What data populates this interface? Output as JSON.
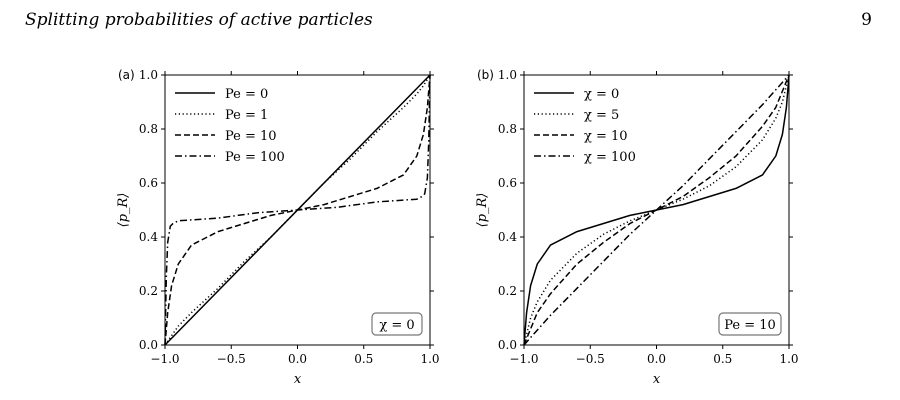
{
  "header": {
    "running_title": "Splitting probabilities of active particles",
    "page_number": "9"
  },
  "chart_data": [
    {
      "type": "line",
      "panel_label": "(a)",
      "xlabel": "x",
      "ylabel": "⟨p_R⟩",
      "xlim": [
        -1,
        1
      ],
      "ylim": [
        0,
        1
      ],
      "xticks": [
        "−1.0",
        "−0.5",
        "0.0",
        "0.5",
        "1.0"
      ],
      "yticks": [
        "0.0",
        "0.2",
        "0.4",
        "0.6",
        "0.8",
        "1.0"
      ],
      "legend_position": "top-left",
      "annotation": "χ = 0",
      "series": [
        {
          "name": "Pe = 0",
          "style": "solid",
          "x": [
            -1,
            1
          ],
          "y": [
            0,
            1
          ]
        },
        {
          "name": "Pe = 1",
          "style": "dotted",
          "x": [
            -1,
            -0.9,
            -0.8,
            -0.6,
            -0.4,
            -0.2,
            0,
            0.2,
            0.4,
            0.6,
            0.8,
            0.9,
            0.95,
            1
          ],
          "y": [
            0,
            0.07,
            0.12,
            0.21,
            0.31,
            0.4,
            0.5,
            0.6,
            0.69,
            0.79,
            0.88,
            0.93,
            0.96,
            1
          ]
        },
        {
          "name": "Pe = 10",
          "style": "dashed",
          "x": [
            -1,
            -0.98,
            -0.95,
            -0.9,
            -0.8,
            -0.6,
            -0.4,
            -0.2,
            0,
            0.2,
            0.4,
            0.6,
            0.8,
            0.9,
            0.95,
            0.98,
            1
          ],
          "y": [
            0,
            0.12,
            0.22,
            0.3,
            0.37,
            0.42,
            0.45,
            0.48,
            0.5,
            0.52,
            0.55,
            0.58,
            0.63,
            0.7,
            0.78,
            0.88,
            1
          ]
        },
        {
          "name": "Pe = 100",
          "style": "dashdot",
          "x": [
            -1,
            -0.99,
            -0.98,
            -0.96,
            -0.94,
            -0.9,
            -0.6,
            -0.3,
            0,
            0.3,
            0.6,
            0.9,
            0.94,
            0.96,
            0.98,
            0.99,
            1
          ],
          "y": [
            0,
            0.25,
            0.38,
            0.44,
            0.45,
            0.46,
            0.47,
            0.49,
            0.5,
            0.51,
            0.53,
            0.54,
            0.55,
            0.56,
            0.62,
            0.75,
            1
          ]
        }
      ]
    },
    {
      "type": "line",
      "panel_label": "(b)",
      "xlabel": "x",
      "ylabel": "⟨p_R⟩",
      "xlim": [
        -1,
        1
      ],
      "ylim": [
        0,
        1
      ],
      "xticks": [
        "−1.0",
        "−0.5",
        "0.0",
        "0.5",
        "1.0"
      ],
      "yticks": [
        "0.0",
        "0.2",
        "0.4",
        "0.6",
        "0.8",
        "1.0"
      ],
      "legend_position": "top-left",
      "annotation": "Pe = 10",
      "series": [
        {
          "name": "χ = 0",
          "style": "solid",
          "x": [
            -1,
            -0.98,
            -0.95,
            -0.9,
            -0.8,
            -0.6,
            -0.4,
            -0.2,
            0,
            0.2,
            0.4,
            0.6,
            0.8,
            0.9,
            0.95,
            0.98,
            1
          ],
          "y": [
            0,
            0.12,
            0.22,
            0.3,
            0.37,
            0.42,
            0.45,
            0.48,
            0.5,
            0.52,
            0.55,
            0.58,
            0.63,
            0.7,
            0.78,
            0.88,
            1
          ]
        },
        {
          "name": "χ = 5",
          "style": "dotted",
          "x": [
            -1,
            -0.95,
            -0.9,
            -0.8,
            -0.6,
            -0.4,
            -0.2,
            0,
            0.2,
            0.4,
            0.6,
            0.8,
            0.9,
            0.95,
            1
          ],
          "y": [
            0,
            0.1,
            0.16,
            0.24,
            0.34,
            0.41,
            0.46,
            0.5,
            0.54,
            0.59,
            0.66,
            0.76,
            0.84,
            0.9,
            1
          ]
        },
        {
          "name": "χ = 10",
          "style": "dashed",
          "x": [
            -1,
            -0.9,
            -0.8,
            -0.6,
            -0.4,
            -0.2,
            0,
            0.2,
            0.4,
            0.6,
            0.8,
            0.9,
            1
          ],
          "y": [
            0,
            0.12,
            0.19,
            0.3,
            0.38,
            0.45,
            0.5,
            0.55,
            0.62,
            0.7,
            0.81,
            0.88,
            1
          ]
        },
        {
          "name": "χ = 100",
          "style": "dashdot",
          "x": [
            -1,
            -0.8,
            -0.6,
            -0.4,
            -0.2,
            0,
            0.2,
            0.4,
            0.6,
            0.8,
            1
          ],
          "y": [
            0,
            0.11,
            0.21,
            0.31,
            0.41,
            0.5,
            0.59,
            0.69,
            0.79,
            0.89,
            1
          ]
        }
      ]
    }
  ]
}
